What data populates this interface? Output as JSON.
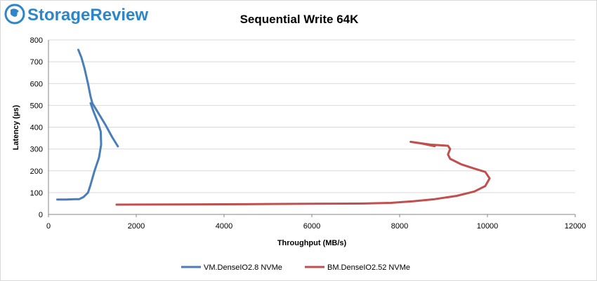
{
  "logo": {
    "text": "StorageReview",
    "icon": "storagereview-globe-icon",
    "color": "#2e86c9"
  },
  "chart_data": {
    "type": "line",
    "title": "Sequential Write 64K",
    "xlabel": "Throughput (MB/s)",
    "ylabel": "Latency (µs)",
    "xlim": [
      0,
      12000
    ],
    "ylim": [
      0,
      800
    ],
    "xticks": [
      "0",
      "2000",
      "4000",
      "6000",
      "8000",
      "10000",
      "12000"
    ],
    "yticks": [
      "0",
      "100",
      "200",
      "300",
      "400",
      "500",
      "600",
      "700",
      "800"
    ],
    "grid": "horizontal",
    "legend": "bottom",
    "series": [
      {
        "name": "VM.DenseIO2.8 NVMe",
        "color": "#4a7ebb",
        "x": [
          1580,
          1450,
          1300,
          1150,
          1000,
          960,
          900,
          820,
          750,
          680
        ],
        "y": [
          312,
          355,
          410,
          460,
          510,
          540,
          600,
          670,
          720,
          755
        ],
        "x2": [
          200,
          400,
          600,
          700,
          800,
          900,
          950,
          1050,
          1150,
          1200,
          1190,
          1130,
          1030,
          960
        ],
        "y2": [
          68,
          68,
          70,
          70,
          80,
          100,
          130,
          200,
          260,
          320,
          380,
          420,
          470,
          510
        ]
      },
      {
        "name": "BM.DenseIO2.52 NVMe",
        "color": "#c0504d",
        "x": [
          1550,
          3000,
          4500,
          6000,
          7200,
          7800,
          8300,
          8800,
          9300,
          9700,
          9950,
          10050,
          9950,
          9700,
          9400,
          9150,
          9100,
          9150,
          9100,
          8700,
          8250,
          8500,
          8800
        ],
        "y": [
          45,
          46,
          47,
          49,
          50,
          53,
          60,
          70,
          85,
          105,
          130,
          165,
          195,
          210,
          230,
          255,
          275,
          300,
          315,
          320,
          333,
          325,
          313
        ]
      }
    ]
  }
}
